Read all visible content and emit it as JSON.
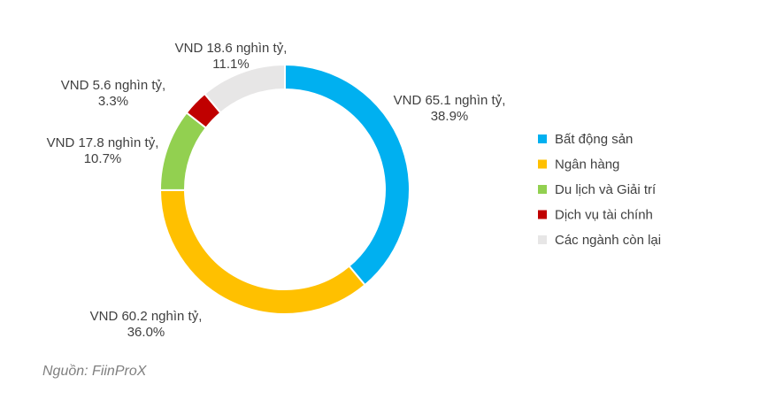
{
  "chart_data": {
    "type": "pie",
    "donut": true,
    "categories": [
      "Bất động sản",
      "Ngân hàng",
      "Du lịch và Giải trí",
      "Dịch vụ tài chính",
      "Các ngành còn lại"
    ],
    "values": [
      65.1,
      60.2,
      17.8,
      5.6,
      18.6
    ],
    "percentages": [
      38.9,
      36.0,
      10.7,
      3.3,
      11.1
    ],
    "data_labels": [
      [
        "VND 65.1 nghìn tỷ,",
        "38.9%"
      ],
      [
        "VND 60.2 nghìn tỷ,",
        "36.0%"
      ],
      [
        "VND 17.8 nghìn tỷ,",
        "10.7%"
      ],
      [
        "VND 5.6 nghìn tỷ,",
        "3.3%"
      ],
      [
        "VND 18.6 nghìn tỷ,",
        "11.1%"
      ]
    ],
    "colors": [
      "#00B0F0",
      "#FFC000",
      "#92D050",
      "#C00000",
      "#E7E6E6"
    ],
    "legend_position": "right"
  },
  "source": "Nguồn: FiinProX"
}
